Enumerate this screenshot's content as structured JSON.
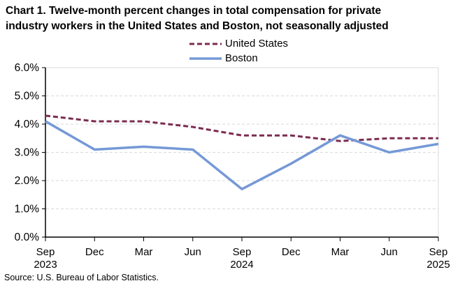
{
  "title": {
    "line1": "Chart 1. Twelve-month percent changes in total compensation for private",
    "line2": "industry workers in the United States and Boston, not seasonally adjusted"
  },
  "source": "Source: U.S. Bureau of Labor Statistics.",
  "chart_data": {
    "type": "line",
    "categories": [
      {
        "month": "Sep",
        "year": "2023"
      },
      {
        "month": "Dec",
        "year": ""
      },
      {
        "month": "Mar",
        "year": ""
      },
      {
        "month": "Jun",
        "year": ""
      },
      {
        "month": "Sep",
        "year": "2024"
      },
      {
        "month": "Dec",
        "year": ""
      },
      {
        "month": "Mar",
        "year": ""
      },
      {
        "month": "Jun",
        "year": ""
      },
      {
        "month": "Sep",
        "year": "2025"
      }
    ],
    "series": [
      {
        "name": "United States",
        "color": "#7B2C50",
        "dash": "7 4",
        "width": 3,
        "values": [
          4.3,
          4.1,
          4.1,
          3.9,
          3.6,
          3.6,
          3.4,
          3.5,
          3.5
        ]
      },
      {
        "name": "Boston",
        "color": "#7599D7",
        "dash": "",
        "width": 3.5,
        "values": [
          4.1,
          3.1,
          3.2,
          3.1,
          1.7,
          2.6,
          3.6,
          3.0,
          3.3
        ]
      }
    ],
    "ylim": [
      0,
      6
    ],
    "ytick_step": 1,
    "ytick_labels": [
      "0.0%",
      "1.0%",
      "2.0%",
      "3.0%",
      "4.0%",
      "5.0%",
      "6.0%"
    ],
    "grid": true,
    "legend_position": "top-center",
    "grid_color": "#d9d9d9",
    "border_color": "#d9d9d9",
    "axis_color": "#000000",
    "text_color": "#000000"
  }
}
